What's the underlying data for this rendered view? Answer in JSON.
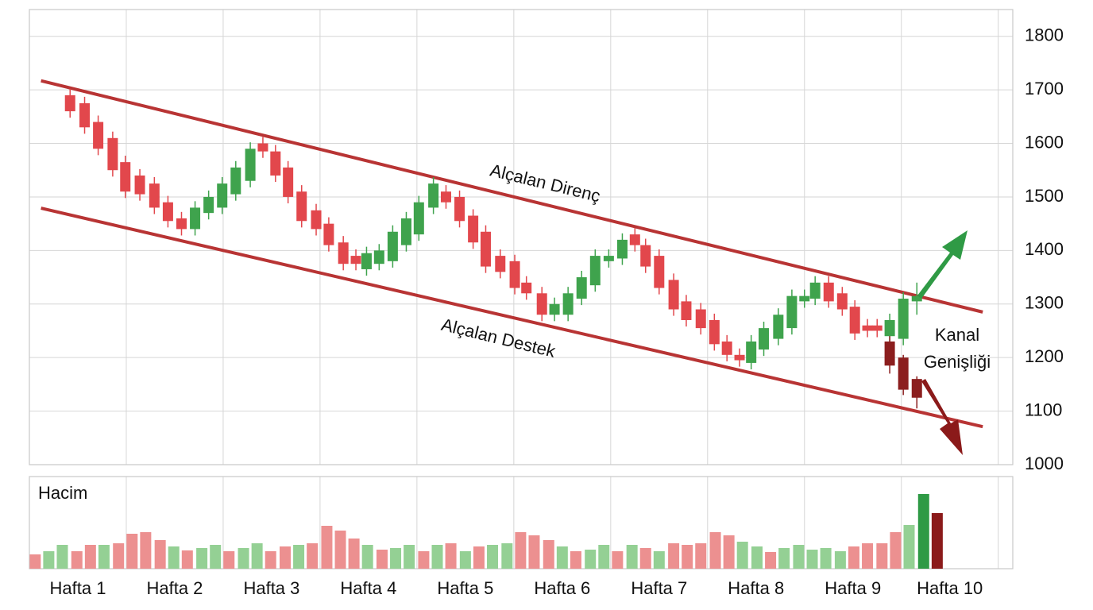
{
  "chart_data": [
    {
      "type": "candlestick",
      "xlim": [
        0.5,
        10.65
      ],
      "ylim": [
        1000,
        1850
      ],
      "yticks": [
        1000,
        1100,
        1200,
        1300,
        1400,
        1500,
        1600,
        1700,
        1800
      ],
      "grid": true,
      "series": [
        {
          "up_color": "#3fa34d",
          "down_color": "#e2474c",
          "x": [
            0.92,
            1.07,
            1.21,
            1.36,
            1.49,
            1.64,
            1.79,
            1.93,
            2.07,
            2.21,
            2.35,
            2.49,
            2.63,
            2.78,
            2.91,
            3.04,
            3.17,
            3.31,
            3.46,
            3.59,
            3.74,
            3.87,
            3.98,
            4.11,
            4.25,
            4.39,
            4.52,
            4.67,
            4.8,
            4.94,
            5.08,
            5.21,
            5.36,
            5.51,
            5.63,
            5.79,
            5.92,
            6.06,
            6.2,
            6.34,
            6.48,
            6.62,
            6.75,
            6.86,
            7.0,
            7.15,
            7.28,
            7.43,
            7.57,
            7.7,
            7.83,
            7.95,
            8.08,
            8.23,
            8.37,
            8.5,
            8.61,
            8.75,
            8.89,
            9.02,
            9.15,
            9.25,
            9.38,
            9.52,
            9.66
          ],
          "open": [
            1690,
            1675,
            1640,
            1610,
            1565,
            1540,
            1525,
            1490,
            1460,
            1440,
            1470,
            1480,
            1505,
            1530,
            1600,
            1585,
            1555,
            1510,
            1475,
            1450,
            1415,
            1390,
            1365,
            1375,
            1380,
            1410,
            1430,
            1480,
            1510,
            1500,
            1465,
            1435,
            1390,
            1380,
            1340,
            1320,
            1280,
            1280,
            1310,
            1335,
            1380,
            1385,
            1430,
            1410,
            1390,
            1345,
            1305,
            1290,
            1270,
            1230,
            1205,
            1190,
            1215,
            1235,
            1255,
            1305,
            1310,
            1340,
            1320,
            1295,
            1260,
            1260,
            1240,
            1235,
            1305
          ],
          "high": [
            1702,
            1687,
            1652,
            1622,
            1577,
            1552,
            1537,
            1502,
            1472,
            1492,
            1512,
            1537,
            1567,
            1602,
            1612,
            1597,
            1567,
            1522,
            1487,
            1462,
            1427,
            1402,
            1407,
            1412,
            1447,
            1472,
            1502,
            1537,
            1522,
            1512,
            1477,
            1447,
            1402,
            1392,
            1352,
            1332,
            1312,
            1332,
            1362,
            1402,
            1402,
            1432,
            1442,
            1422,
            1402,
            1357,
            1317,
            1302,
            1282,
            1242,
            1217,
            1242,
            1267,
            1292,
            1327,
            1327,
            1352,
            1352,
            1332,
            1307,
            1272,
            1272,
            1282,
            1322,
            1340
          ],
          "low": [
            1648,
            1618,
            1578,
            1538,
            1498,
            1493,
            1468,
            1443,
            1428,
            1428,
            1458,
            1468,
            1493,
            1518,
            1573,
            1528,
            1488,
            1443,
            1428,
            1398,
            1363,
            1363,
            1353,
            1363,
            1368,
            1398,
            1418,
            1468,
            1478,
            1443,
            1403,
            1358,
            1348,
            1318,
            1308,
            1268,
            1268,
            1268,
            1298,
            1323,
            1368,
            1373,
            1398,
            1358,
            1318,
            1278,
            1258,
            1243,
            1213,
            1193,
            1183,
            1178,
            1203,
            1223,
            1243,
            1293,
            1298,
            1293,
            1278,
            1233,
            1238,
            1238,
            1228,
            1223,
            1280
          ],
          "close": [
            1660,
            1630,
            1590,
            1550,
            1510,
            1505,
            1480,
            1455,
            1440,
            1480,
            1500,
            1525,
            1555,
            1590,
            1585,
            1540,
            1500,
            1455,
            1440,
            1410,
            1375,
            1375,
            1395,
            1400,
            1435,
            1460,
            1490,
            1525,
            1490,
            1455,
            1415,
            1370,
            1360,
            1330,
            1320,
            1280,
            1300,
            1320,
            1350,
            1390,
            1390,
            1420,
            1410,
            1370,
            1330,
            1290,
            1270,
            1255,
            1225,
            1205,
            1195,
            1230,
            1255,
            1280,
            1315,
            1315,
            1340,
            1305,
            1290,
            1245,
            1250,
            1250,
            1270,
            1310,
            1315
          ]
        },
        {
          "up_color": "#8b1e1e",
          "down_color": "#8b1e1e",
          "x": [
            9.38,
            9.52,
            9.66
          ],
          "open": [
            1230,
            1200,
            1160
          ],
          "high": [
            1240,
            1205,
            1165
          ],
          "low": [
            1170,
            1130,
            1105
          ],
          "close": [
            1185,
            1140,
            1125
          ]
        }
      ],
      "lines": [
        {
          "x": [
            0.62,
            10.34
          ],
          "y": [
            1717,
            1285
          ],
          "color": "#b83434"
        },
        {
          "x": [
            0.62,
            10.34
          ],
          "y": [
            1479,
            1071
          ],
          "color": "#b83434"
        }
      ],
      "annotations": [
        "Alçalan Direnç",
        "Alçalan Destek"
      ],
      "channel_label": [
        "Kanal",
        "Genişliği"
      ]
    },
    {
      "type": "bar",
      "title": "Hacim",
      "xlim": [
        0.5,
        10.65
      ],
      "ylim": [
        0,
        116
      ],
      "xticks": [
        {
          "value": 1,
          "label": "Hafta 1"
        },
        {
          "value": 2,
          "label": "Hafta 2"
        },
        {
          "value": 3,
          "label": "Hafta 3"
        },
        {
          "value": 4,
          "label": "Hafta 4"
        },
        {
          "value": 5,
          "label": "Hafta 5"
        },
        {
          "value": 6,
          "label": "Hafta 6"
        },
        {
          "value": 7,
          "label": "Hafta 7"
        },
        {
          "value": 8,
          "label": "Hafta 8"
        },
        {
          "value": 9,
          "label": "Hafta 9"
        },
        {
          "value": 10,
          "label": "Hafta 10"
        }
      ],
      "x": [
        0.56,
        0.7,
        0.84,
        0.99,
        1.13,
        1.27,
        1.42,
        1.56,
        1.7,
        1.85,
        1.99,
        2.13,
        2.28,
        2.42,
        2.56,
        2.71,
        2.85,
        2.99,
        3.14,
        3.28,
        3.42,
        3.57,
        3.71,
        3.85,
        3.99,
        4.14,
        4.28,
        4.42,
        4.57,
        4.71,
        4.85,
        5.0,
        5.14,
        5.28,
        5.43,
        5.57,
        5.71,
        5.86,
        6.0,
        6.14,
        6.29,
        6.43,
        6.57,
        6.72,
        6.86,
        7.0,
        7.15,
        7.29,
        7.43,
        7.58,
        7.72,
        7.86,
        8.01,
        8.15,
        8.29,
        8.44,
        8.58,
        8.72,
        8.87,
        9.01,
        9.15,
        9.3,
        9.44,
        9.58,
        9.73,
        9.87
      ],
      "values": [
        18,
        22,
        30,
        22,
        30,
        30,
        32,
        44,
        46,
        36,
        28,
        23,
        26,
        30,
        22,
        26,
        32,
        22,
        28,
        30,
        32,
        54,
        48,
        38,
        30,
        24,
        26,
        30,
        22,
        30,
        32,
        22,
        28,
        30,
        32,
        46,
        42,
        36,
        28,
        22,
        24,
        30,
        22,
        30,
        26,
        22,
        32,
        30,
        32,
        46,
        42,
        34,
        28,
        21,
        26,
        30,
        24,
        26,
        22,
        28,
        32,
        32,
        46,
        55,
        94,
        70
      ],
      "colors": [
        "#ec9090",
        "#94d094",
        "#94d094",
        "#ec9090",
        "#ec9090",
        "#94d094",
        "#ec9090",
        "#ec9090",
        "#ec9090",
        "#ec9090",
        "#94d094",
        "#ec9090",
        "#94d094",
        "#94d094",
        "#ec9090",
        "#94d094",
        "#94d094",
        "#ec9090",
        "#ec9090",
        "#94d094",
        "#ec9090",
        "#ec9090",
        "#ec9090",
        "#ec9090",
        "#94d094",
        "#ec9090",
        "#94d094",
        "#94d094",
        "#ec9090",
        "#94d094",
        "#ec9090",
        "#94d094",
        "#ec9090",
        "#94d094",
        "#94d094",
        "#ec9090",
        "#ec9090",
        "#ec9090",
        "#94d094",
        "#ec9090",
        "#94d094",
        "#94d094",
        "#ec9090",
        "#94d094",
        "#ec9090",
        "#94d094",
        "#ec9090",
        "#ec9090",
        "#ec9090",
        "#ec9090",
        "#ec9090",
        "#94d094",
        "#94d094",
        "#ec9090",
        "#94d094",
        "#94d094",
        "#94d094",
        "#94d094",
        "#94d094",
        "#ec9090",
        "#ec9090",
        "#ec9090",
        "#ec9090",
        "#94d094",
        "#2e9a45",
        "#8b1a1a"
      ]
    }
  ]
}
